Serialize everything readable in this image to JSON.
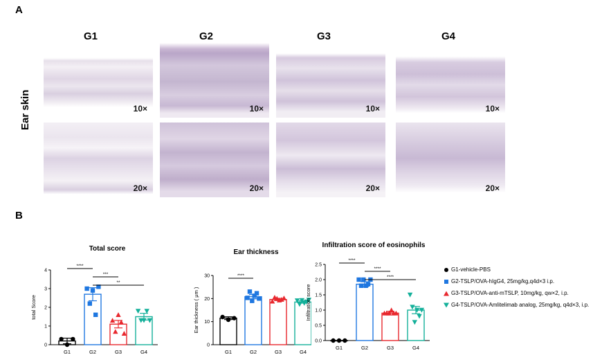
{
  "panel_a": {
    "letter": "A",
    "row_label": "Ear skin",
    "groups": [
      "G1",
      "G2",
      "G3",
      "G4"
    ],
    "magnifications": [
      "10×",
      "10×",
      "10×",
      "10×",
      "20×",
      "20×",
      "20×",
      "20×"
    ]
  },
  "panel_b": {
    "letter": "B"
  },
  "legend": [
    {
      "label": "G1-vehicle-PBS",
      "color": "#000000",
      "marker": "circle"
    },
    {
      "label": "G2-TSLP/OVA-hIgG4, 25mg/kg,q4d×3 i.p.",
      "color": "#1f77e0",
      "marker": "square"
    },
    {
      "label": "G3-TSLP/OVA-anti-mTSLP, 10mg/kg, qw×2, i.p.",
      "color": "#e8282e",
      "marker": "triangle-up"
    },
    {
      "label": "G4-TSLP/OVA-Amlitelimab analog, 25mg/kg, q4d×3, i.p.",
      "color": "#14b09a",
      "marker": "triangle-down"
    }
  ],
  "chart_data": [
    {
      "type": "bar",
      "title": "Total score",
      "xlabel": "",
      "ylabel": "total Score",
      "categories": [
        "G1",
        "G2",
        "G3",
        "G4"
      ],
      "values": [
        0.2,
        2.7,
        1.1,
        1.5
      ],
      "errors": [
        0.15,
        0.35,
        0.2,
        0.18
      ],
      "points": [
        [
          0.3,
          0.0,
          0.3
        ],
        [
          3.0,
          2.2,
          2.9,
          1.6,
          3.1
        ],
        [
          1.3,
          0.7,
          1.6,
          1.2,
          0.6
        ],
        [
          1.8,
          1.3,
          1.3,
          1.8,
          1.3
        ]
      ],
      "ylim": [
        0,
        4
      ],
      "yticks": [
        0,
        1,
        2,
        3,
        4
      ],
      "significance": [
        {
          "from": 0,
          "to": 1,
          "label": "****"
        },
        {
          "from": 1,
          "to": 2,
          "label": "***"
        },
        {
          "from": 1,
          "to": 3,
          "label": "**"
        }
      ]
    },
    {
      "type": "bar",
      "title": "Ear thickness",
      "xlabel": "",
      "ylabel": "Ear thickness ( μm )",
      "categories": [
        "G1",
        "G2",
        "G3",
        "G4"
      ],
      "values": [
        11.5,
        20.8,
        19.6,
        18.5
      ],
      "errors": [
        0.6,
        0.9,
        0.5,
        0.5
      ],
      "points": [
        [
          12.0,
          10.8,
          11.5
        ],
        [
          20.3,
          23.0,
          19.0,
          21.2,
          22.3,
          20.0
        ],
        [
          18.8,
          20.5,
          20.0,
          19.3,
          19.6,
          20.2
        ],
        [
          19.1,
          17.5,
          19.2,
          18.0,
          18.6,
          19.4
        ]
      ],
      "ylim": [
        0,
        30
      ],
      "yticks": [
        0,
        10,
        20,
        30
      ],
      "significance": [
        {
          "from": 0,
          "to": 1,
          "label": "****"
        }
      ]
    },
    {
      "type": "bar",
      "title": "Infiltration score of eosinophils",
      "xlabel": "",
      "ylabel": "Infiltration score",
      "categories": [
        "G1",
        "G2",
        "G3",
        "G4"
      ],
      "values": [
        0.0,
        1.85,
        0.9,
        1.0
      ],
      "errors": [
        0.0,
        0.08,
        0.06,
        0.12
      ],
      "points": [
        [
          0.0,
          0.0,
          0.0
        ],
        [
          2.0,
          1.8,
          2.0,
          1.8,
          1.85,
          2.0
        ],
        [
          0.9,
          0.9,
          0.9,
          1.0,
          0.9,
          0.9
        ],
        [
          1.5,
          1.1,
          0.6,
          1.0,
          0.8,
          1.0
        ]
      ],
      "ylim": [
        0,
        2.5
      ],
      "yticks": [
        0.0,
        0.5,
        1.0,
        1.5,
        2.0,
        2.5
      ],
      "significance": [
        {
          "from": 0,
          "to": 1,
          "label": "****"
        },
        {
          "from": 1,
          "to": 2,
          "label": "****"
        },
        {
          "from": 1,
          "to": 3,
          "label": "****"
        }
      ]
    }
  ]
}
